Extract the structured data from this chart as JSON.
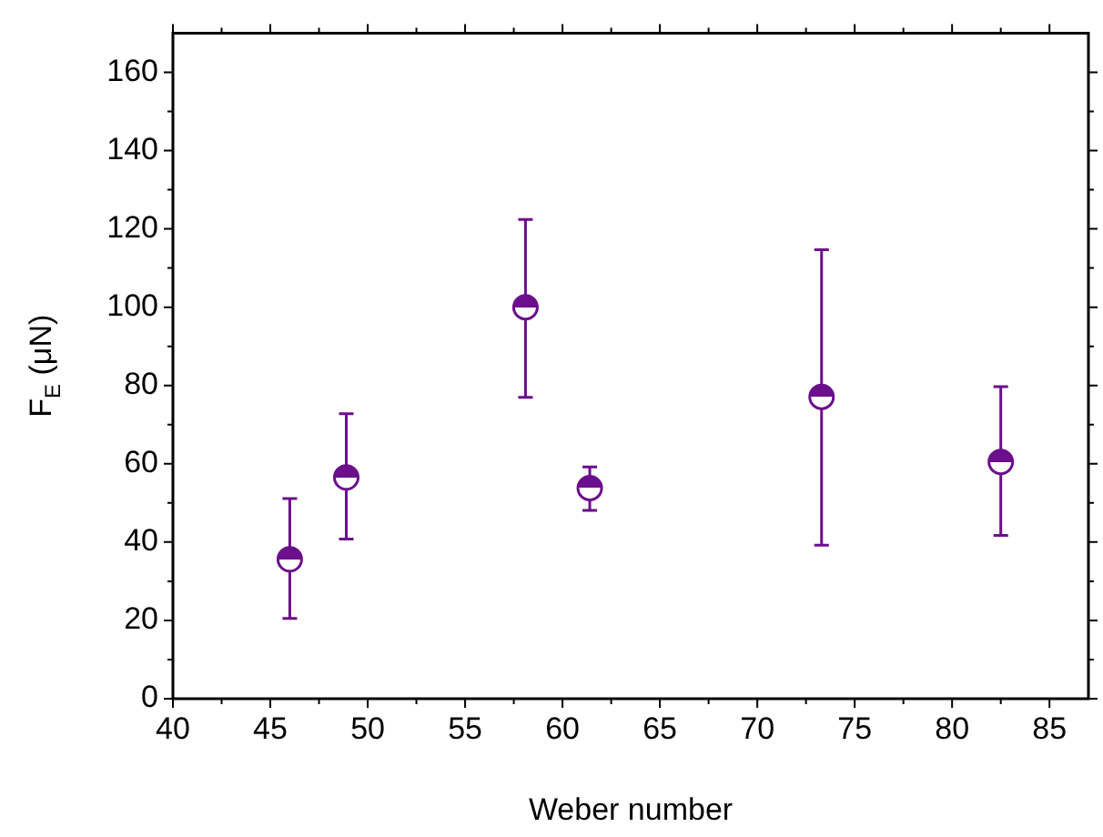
{
  "chart_data": {
    "type": "scatter",
    "xlabel": "Weber number",
    "ylabel": "F$_{E}$ (μN)",
    "x": [
      46.0,
      48.9,
      58.1,
      61.4,
      73.3,
      82.5
    ],
    "series": [
      {
        "color": "#6b0f8c",
        "values": [
          35.6,
          56.5,
          100.0,
          53.8,
          77.1,
          60.5
        ],
        "errors": [
          [
            20.5,
            51.1
          ],
          [
            40.8,
            72.8
          ],
          [
            77.0,
            122.4
          ],
          [
            48.1,
            59.2
          ],
          [
            39.2,
            114.7
          ],
          [
            41.7,
            79.7
          ]
        ]
      }
    ],
    "xlim": [
      40,
      87
    ],
    "xticks": [
      40,
      45,
      50,
      55,
      60,
      65,
      70,
      75,
      80,
      85
    ],
    "ylim": [
      0,
      170
    ],
    "yticks": [
      0,
      20,
      40,
      60,
      80,
      100,
      120,
      140,
      160
    ],
    "marker": "circle",
    "legend": false,
    "grid": false
  }
}
